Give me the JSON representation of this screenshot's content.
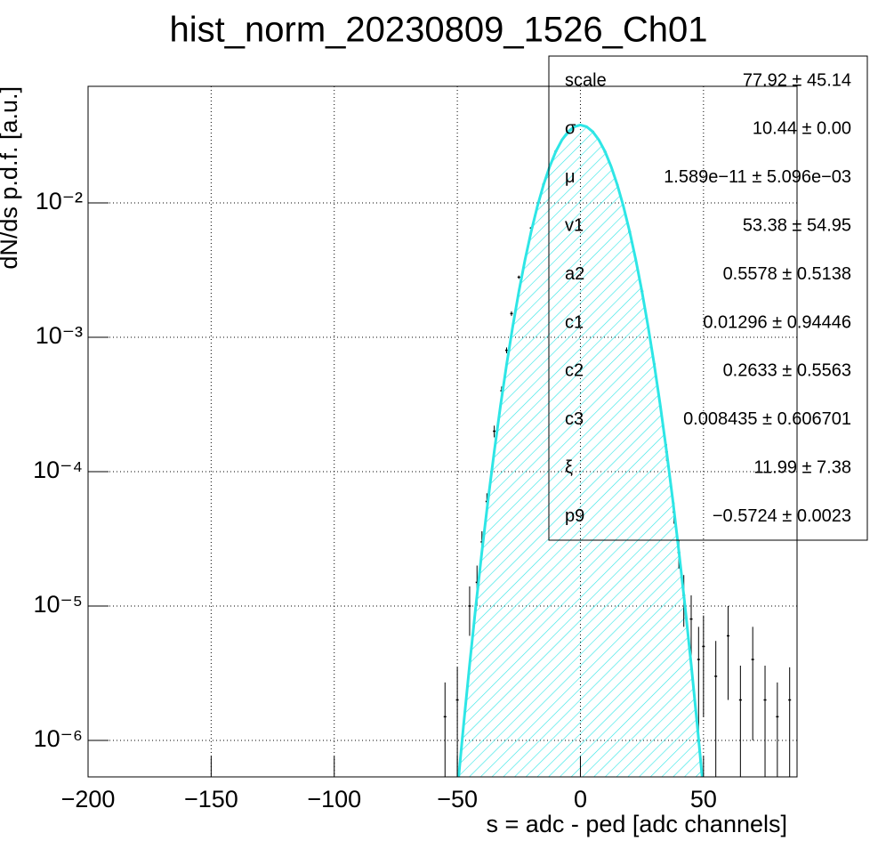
{
  "chart_data": {
    "type": "errorbar",
    "title": "hist_norm_20230809_1526_Ch01",
    "xlabel": "s = adc - ped [adc channels]",
    "ylabel": "dN/ds p.d.f. [a.u.]",
    "xlim": [
      -200,
      88
    ],
    "ylim": [
      5.35e-07,
      0.0737
    ],
    "log_y": true,
    "grid": true,
    "xticks": [
      {
        "value": -200,
        "label": "−200"
      },
      {
        "value": -150,
        "label": "−150"
      },
      {
        "value": -100,
        "label": "−100"
      },
      {
        "value": -50,
        "label": "−50"
      },
      0,
      50
    ],
    "yticks": [
      {
        "value": 1e-06,
        "label": "10⁻⁶"
      },
      {
        "value": 1e-05,
        "label": "10⁻⁵"
      },
      {
        "value": 0.0001,
        "label": "10⁻⁴"
      },
      {
        "value": 0.001,
        "label": "10⁻³"
      },
      {
        "value": 0.01,
        "label": "10⁻²"
      }
    ],
    "series": [
      {
        "color": "#000000",
        "x": [
          -55,
          -50,
          -45,
          -42,
          -40,
          -38,
          -35,
          -32,
          -30,
          -28,
          -25,
          -20,
          -15,
          -10,
          -5,
          0,
          5,
          10,
          15,
          20,
          25,
          30,
          35,
          38,
          40,
          42,
          45,
          48,
          50,
          55,
          60,
          65,
          70,
          75,
          80,
          85
        ],
        "values": [
          1.5e-06,
          2e-06,
          1e-05,
          1.5e-05,
          3e-05,
          6e-05,
          0.0002,
          0.0004,
          0.0008,
          0.0015,
          0.0028,
          0.0065,
          0.0137,
          0.0242,
          0.0339,
          0.038,
          0.0339,
          0.024,
          0.0136,
          0.0061,
          0.0022,
          0.00063,
          0.00014,
          5e-05,
          2.5e-05,
          1.2e-05,
          8e-06,
          4e-06,
          5e-06,
          3e-06,
          6e-06,
          2e-06,
          4e-06,
          2e-06,
          1.5e-06,
          2e-06
        ],
        "errors": [
          1.2e-06,
          1.5e-06,
          4e-06,
          5e-06,
          6e-06,
          9e-06,
          2e-05,
          3e-05,
          4e-05,
          6e-05,
          8e-05,
          0.00013,
          0.0002,
          0.00025,
          0.0003,
          0.0003,
          0.0003,
          0.00025,
          0.0002,
          0.00013,
          8e-05,
          4e-05,
          2e-05,
          9e-06,
          6e-06,
          5e-06,
          4e-06,
          3e-06,
          3.5e-06,
          2.5e-06,
          4e-06,
          1.6e-06,
          3e-06,
          1.6e-06,
          1.2e-06,
          1.5e-06
        ]
      }
    ],
    "fit": {
      "color": "#2ee6e6",
      "x": [
        -50,
        -47.5,
        -45,
        -42.5,
        -40,
        -37.5,
        -35,
        -32.5,
        -30,
        -27.5,
        -25,
        -22.5,
        -20,
        -17.5,
        -15,
        -12.5,
        -10,
        -7.5,
        -5,
        -2.5,
        0,
        2.5,
        5,
        7.5,
        10,
        12.5,
        15,
        17.5,
        20,
        22.5,
        25,
        27.5,
        30,
        32.5,
        35,
        37.5,
        40,
        42.5,
        45,
        47.5,
        50
      ],
      "values": [
        4.2e-07,
        1.28e-06,
        3.67e-06,
        9.95e-06,
        2.55e-05,
        6.19e-05,
        0.000141,
        0.000306,
        0.000624,
        0.0012,
        0.00219,
        0.00377,
        0.00612,
        0.00939,
        0.0136,
        0.0186,
        0.0241,
        0.0294,
        0.0339,
        0.0369,
        0.038,
        0.0369,
        0.0339,
        0.0294,
        0.0241,
        0.0186,
        0.0136,
        0.00939,
        0.00612,
        0.00377,
        0.00219,
        0.0012,
        0.000624,
        0.000306,
        0.000141,
        6.19e-05,
        2.55e-05,
        9.95e-06,
        3.67e-06,
        1.28e-06,
        4.2e-07
      ]
    },
    "stats": [
      {
        "name": "scale",
        "value": "77.92 ± 45.14"
      },
      {
        "name": "σ",
        "value": "10.44 ± 0.00"
      },
      {
        "name": "μ",
        "value": "1.589e−11 ± 5.096e−03"
      },
      {
        "name": "v1",
        "value": "53.38 ± 54.95"
      },
      {
        "name": "a2",
        "value": "0.5578 ± 0.5138"
      },
      {
        "name": "c1",
        "value": "0.01296 ± 0.94446"
      },
      {
        "name": "c2",
        "value": "0.2633 ± 0.5563"
      },
      {
        "name": "c3",
        "value": "0.008435 ± 0.606701"
      },
      {
        "name": "ξ",
        "value": "11.99 ± 7.38"
      },
      {
        "name": "p9",
        "value": "−0.5724 ± 0.0023"
      }
    ]
  }
}
